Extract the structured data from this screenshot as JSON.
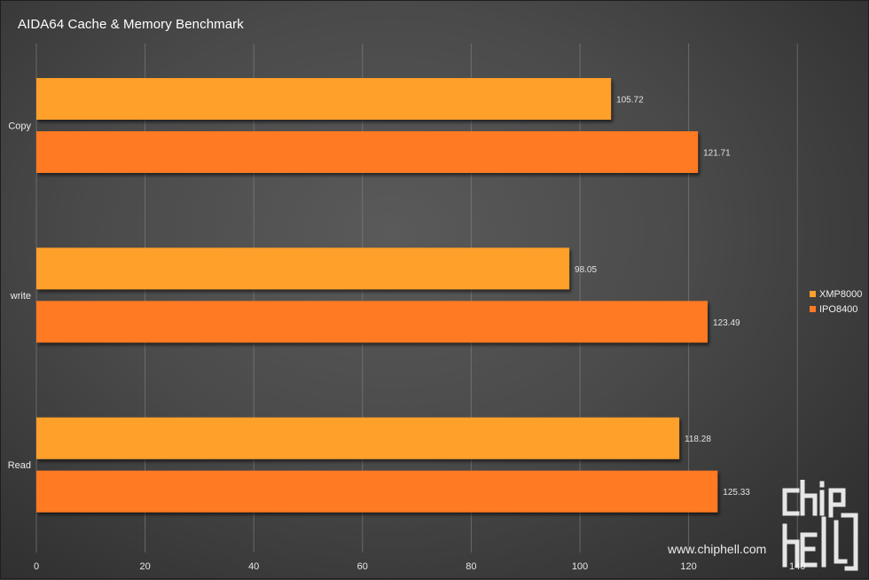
{
  "chart_data": {
    "type": "bar",
    "orientation": "horizontal",
    "title": "AIDA64 Cache & Memory Benchmark",
    "categories": [
      "Copy",
      "write",
      "Read"
    ],
    "series": [
      {
        "name": "XMP8000",
        "color": "#ffa02a",
        "values": [
          105.72,
          98.05,
          118.28
        ],
        "labels": [
          "105.72",
          "98.05",
          "118.28"
        ]
      },
      {
        "name": "IPO8400",
        "color": "#ff7a22",
        "values": [
          121.71,
          123.49,
          125.33
        ],
        "labels": [
          "121.71",
          "123.49",
          "125.33"
        ]
      }
    ],
    "xlim": [
      0,
      150
    ],
    "xticks": [
      0,
      20,
      40,
      60,
      80,
      100,
      120,
      140
    ],
    "grid": true,
    "legend_position": "right"
  },
  "watermark": {
    "text": "www.chiphell.com",
    "logo_text": "chiphell"
  }
}
